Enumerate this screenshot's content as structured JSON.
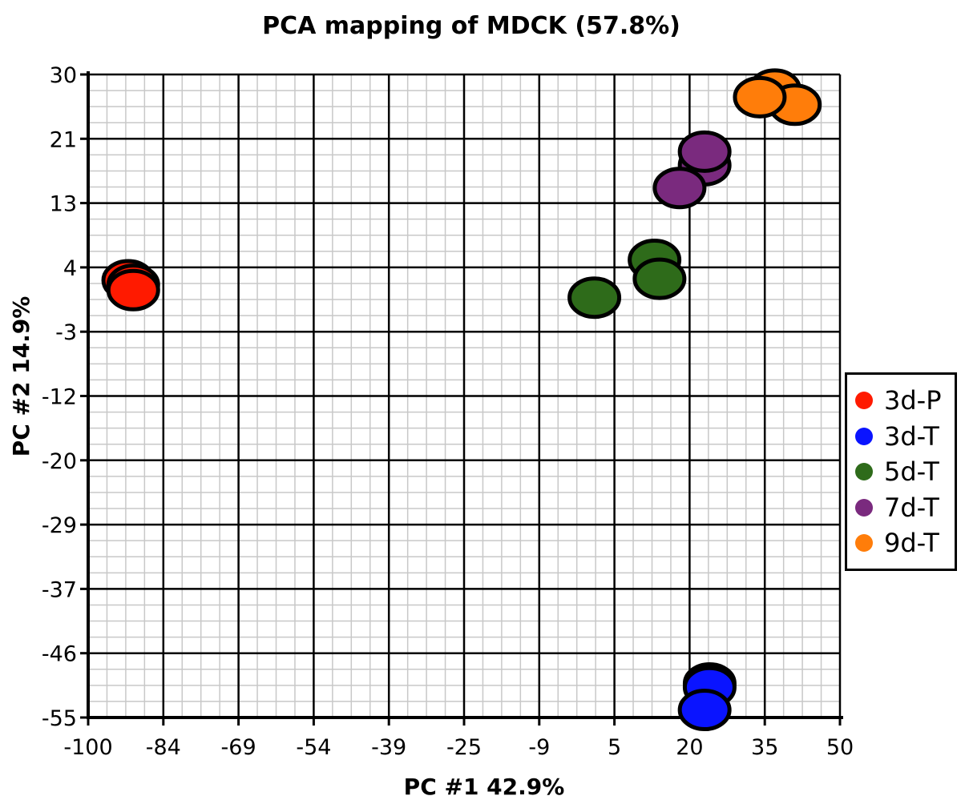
{
  "chart_data": {
    "type": "scatter",
    "title": "PCA mapping of MDCK (57.8%)",
    "xlabel": "PC #1 42.9%",
    "ylabel": "PC #2 14.9%",
    "xlim": [
      -100,
      50
    ],
    "ylim": [
      -55,
      30
    ],
    "x_ticks": [
      "-100",
      "-84",
      "-69",
      "-54",
      "-39",
      "-25",
      "-9",
      "5",
      "20",
      "35",
      "50"
    ],
    "y_ticks": [
      "30",
      "21",
      "13",
      "4",
      "-3",
      "-12",
      "-20",
      "-29",
      "-37",
      "-46",
      "-55"
    ],
    "grid": true,
    "legend_position": "right",
    "series": [
      {
        "name": "3d-P",
        "color": "#ff1a00",
        "points": [
          {
            "x": -92,
            "y": 2.8
          },
          {
            "x": -91,
            "y": 2.2
          },
          {
            "x": -91,
            "y": 1.5
          }
        ]
      },
      {
        "name": "3d-T",
        "color": "#0a14ff",
        "points": [
          {
            "x": 24,
            "y": -50.5
          },
          {
            "x": 24,
            "y": -51
          },
          {
            "x": 23,
            "y": -54
          }
        ]
      },
      {
        "name": "5d-T",
        "color": "#2e6b1a",
        "points": [
          {
            "x": 13,
            "y": 5.5
          },
          {
            "x": 14,
            "y": 3
          },
          {
            "x": 1,
            "y": 0.5
          }
        ]
      },
      {
        "name": "7d-T",
        "color": "#7a2a7e",
        "points": [
          {
            "x": 23,
            "y": 18
          },
          {
            "x": 23,
            "y": 19.8
          },
          {
            "x": 18,
            "y": 15
          }
        ]
      },
      {
        "name": "9d-T",
        "color": "#ff7d0a",
        "points": [
          {
            "x": 37,
            "y": 28
          },
          {
            "x": 41,
            "y": 26
          },
          {
            "x": 34,
            "y": 27
          }
        ]
      }
    ]
  }
}
